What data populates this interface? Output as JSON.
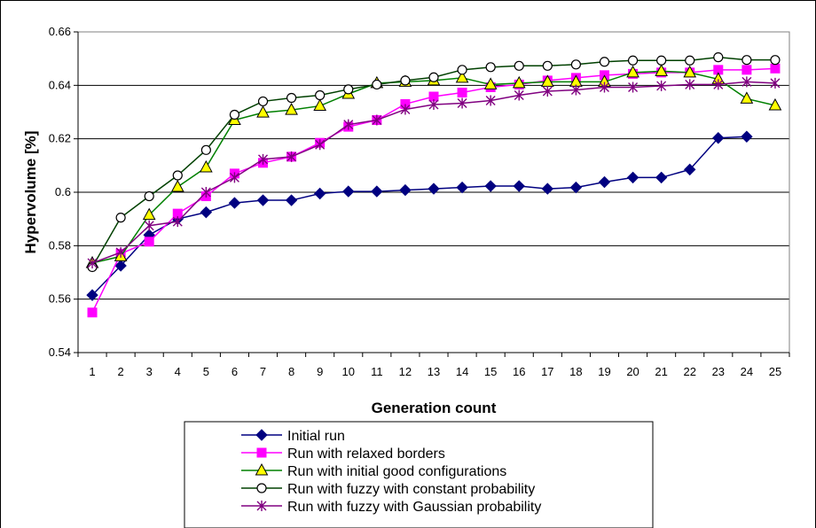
{
  "chart_data": {
    "type": "line",
    "title": "",
    "xlabel": "Generation count",
    "ylabel": "Hypervolume [%]",
    "x": [
      1,
      2,
      3,
      4,
      5,
      6,
      7,
      8,
      9,
      10,
      11,
      12,
      13,
      14,
      15,
      16,
      17,
      18,
      19,
      20,
      21,
      22,
      23,
      24,
      25
    ],
    "ylim": [
      0.54,
      0.66
    ],
    "yticks": [
      "0.54",
      "0.56",
      "0.58",
      "0.6",
      "0.62",
      "0.64",
      "0.66"
    ],
    "grid": "horizontal",
    "legend_position": "bottom",
    "series": [
      {
        "name": "Initial run",
        "color": "#000080",
        "marker": "diamond",
        "values": [
          0.5615,
          0.5725,
          0.584,
          0.59,
          0.5925,
          0.596,
          0.597,
          0.597,
          0.5995,
          0.6003,
          0.6003,
          0.6008,
          0.6013,
          0.6018,
          0.6023,
          0.6023,
          0.6013,
          0.6018,
          0.6038,
          0.6055,
          0.6055,
          0.6085,
          0.6203,
          0.6208,
          null
        ]
      },
      {
        "name": "Run with relaxed borders",
        "color": "#ff00ff",
        "marker": "square",
        "values": [
          0.555,
          0.577,
          0.5815,
          0.592,
          0.5985,
          0.607,
          0.611,
          0.6133,
          0.6185,
          0.6245,
          0.627,
          0.633,
          0.6358,
          0.6373,
          0.6393,
          0.6403,
          0.6418,
          0.6428,
          0.6438,
          0.6443,
          0.6448,
          0.6448,
          0.6458,
          0.6458,
          0.6463
        ]
      },
      {
        "name": "Run with initial good configurations",
        "color": "#008000",
        "marker": "triangle",
        "values": [
          0.5735,
          0.576,
          0.5915,
          0.602,
          0.6093,
          0.627,
          0.6298,
          0.6308,
          0.6323,
          0.6368,
          0.6408,
          0.6413,
          0.6418,
          0.6428,
          0.6403,
          0.6408,
          0.6413,
          0.6413,
          0.6413,
          0.6448,
          0.6453,
          0.6448,
          0.6423,
          0.635,
          0.6325
        ]
      },
      {
        "name": "Run with fuzzy with constant probability",
        "color": "#004000",
        "marker": "circle",
        "values": [
          0.572,
          0.5905,
          0.5985,
          0.6063,
          0.6158,
          0.629,
          0.634,
          0.6353,
          0.6363,
          0.6385,
          0.6403,
          0.6418,
          0.643,
          0.6458,
          0.6468,
          0.6473,
          0.6473,
          0.6478,
          0.6488,
          0.6493,
          0.6493,
          0.6493,
          0.6505,
          0.6495,
          0.6495
        ]
      },
      {
        "name": "Run with fuzzy with Gaussian probability",
        "color": "#800080",
        "marker": "star",
        "values": [
          0.5735,
          0.5775,
          0.5875,
          0.589,
          0.6,
          0.6055,
          0.6123,
          0.6133,
          0.6178,
          0.6253,
          0.627,
          0.631,
          0.6328,
          0.6333,
          0.6343,
          0.6363,
          0.6378,
          0.6383,
          0.6393,
          0.6393,
          0.6398,
          0.6403,
          0.6403,
          0.6413,
          0.6408
        ]
      }
    ]
  }
}
